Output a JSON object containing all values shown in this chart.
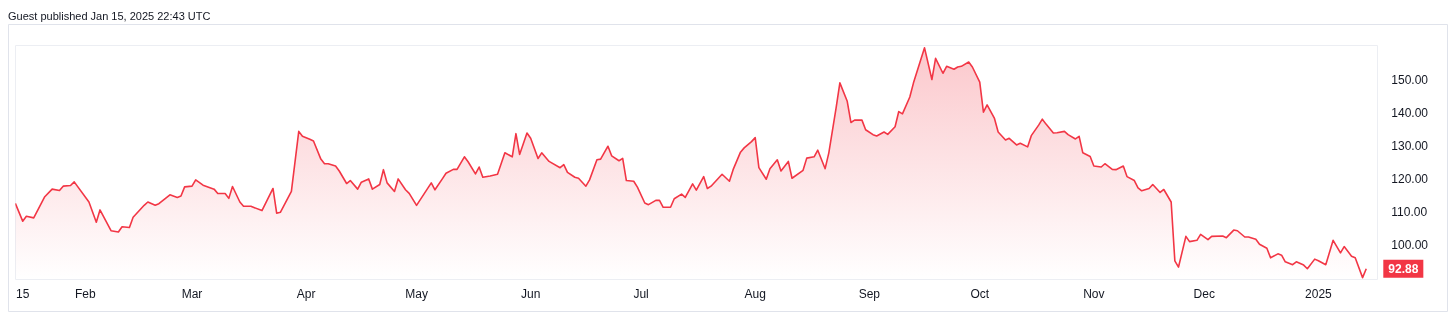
{
  "chart_data": {
    "type": "area",
    "title": "Guest published Jan 15, 2025 22:43 UTC",
    "x": [
      "2024-01-13",
      "2024-01-15",
      "2024-01-16",
      "2024-01-18",
      "2024-01-21",
      "2024-01-23",
      "2024-01-25",
      "2024-01-26",
      "2024-01-28",
      "2024-01-29",
      "2024-02-02",
      "2024-02-04",
      "2024-02-05",
      "2024-02-08",
      "2024-02-10",
      "2024-02-11",
      "2024-02-13",
      "2024-02-14",
      "2024-02-17",
      "2024-02-18",
      "2024-02-20",
      "2024-02-21",
      "2024-02-24",
      "2024-02-26",
      "2024-02-27",
      "2024-02-28",
      "2024-03-01",
      "2024-03-02",
      "2024-03-04",
      "2024-03-07",
      "2024-03-08",
      "2024-03-10",
      "2024-03-11",
      "2024-03-12",
      "2024-03-14",
      "2024-03-15",
      "2024-03-17",
      "2024-03-20",
      "2024-03-23",
      "2024-03-24",
      "2024-03-25",
      "2024-03-27",
      "2024-03-28",
      "2024-03-30",
      "2024-03-31",
      "2024-04-02",
      "2024-04-03",
      "2024-04-05",
      "2024-04-06",
      "2024-04-07",
      "2024-04-09",
      "2024-04-10",
      "2024-04-12",
      "2024-04-13",
      "2024-04-15",
      "2024-04-16",
      "2024-04-18",
      "2024-04-19",
      "2024-04-21",
      "2024-04-22",
      "2024-04-23",
      "2024-04-25",
      "2024-04-26",
      "2024-04-28",
      "2024-04-29",
      "2024-05-01",
      "2024-05-03",
      "2024-05-05",
      "2024-05-06",
      "2024-05-08",
      "2024-05-09",
      "2024-05-11",
      "2024-05-12",
      "2024-05-14",
      "2024-05-15",
      "2024-05-17",
      "2024-05-18",
      "2024-05-19",
      "2024-05-21",
      "2024-05-23",
      "2024-05-25",
      "2024-05-27",
      "2024-05-28",
      "2024-05-29",
      "2024-05-31",
      "2024-06-01",
      "2024-06-03",
      "2024-06-04",
      "2024-06-06",
      "2024-06-09",
      "2024-06-10",
      "2024-06-11",
      "2024-06-13",
      "2024-06-14",
      "2024-06-16",
      "2024-06-17",
      "2024-06-19",
      "2024-06-20",
      "2024-06-22",
      "2024-06-23",
      "2024-06-25",
      "2024-06-26",
      "2024-06-27",
      "2024-06-29",
      "2024-06-30",
      "2024-07-02",
      "2024-07-03",
      "2024-07-05",
      "2024-07-06",
      "2024-07-07",
      "2024-07-09",
      "2024-07-10",
      "2024-07-12",
      "2024-07-13",
      "2024-07-15",
      "2024-07-16",
      "2024-07-18",
      "2024-07-19",
      "2024-07-20",
      "2024-07-23",
      "2024-07-25",
      "2024-07-26",
      "2024-07-28",
      "2024-07-29",
      "2024-07-31",
      "2024-08-01",
      "2024-08-02",
      "2024-08-04",
      "2024-08-05",
      "2024-08-07",
      "2024-08-08",
      "2024-08-10",
      "2024-08-11",
      "2024-08-14",
      "2024-08-15",
      "2024-08-17",
      "2024-08-18",
      "2024-08-20",
      "2024-08-21",
      "2024-08-23",
      "2024-08-24",
      "2024-08-26",
      "2024-08-27",
      "2024-08-28",
      "2024-08-30",
      "2024-08-31",
      "2024-09-02",
      "2024-09-03",
      "2024-09-05",
      "2024-09-06",
      "2024-09-08",
      "2024-09-09",
      "2024-09-10",
      "2024-09-12",
      "2024-09-13",
      "2024-09-16",
      "2024-09-18",
      "2024-09-19",
      "2024-09-21",
      "2024-09-22",
      "2024-09-24",
      "2024-09-25",
      "2024-09-26",
      "2024-09-28",
      "2024-09-29",
      "2024-10-01",
      "2024-10-02",
      "2024-10-03",
      "2024-10-05",
      "2024-10-06",
      "2024-10-08",
      "2024-10-09",
      "2024-10-11",
      "2024-10-12",
      "2024-10-14",
      "2024-10-15",
      "2024-10-17",
      "2024-10-18",
      "2024-10-19",
      "2024-10-21",
      "2024-10-22",
      "2024-10-24",
      "2024-10-25",
      "2024-10-27",
      "2024-10-28",
      "2024-10-29",
      "2024-10-31",
      "2024-11-01",
      "2024-11-03",
      "2024-11-04",
      "2024-11-06",
      "2024-11-07",
      "2024-11-09",
      "2024-11-10",
      "2024-11-12",
      "2024-11-13",
      "2024-11-14",
      "2024-11-16",
      "2024-11-17",
      "2024-11-19",
      "2024-11-20",
      "2024-11-22",
      "2024-11-23",
      "2024-11-24",
      "2024-11-26",
      "2024-11-27",
      "2024-11-29",
      "2024-11-30",
      "2024-12-02",
      "2024-12-03",
      "2024-12-06",
      "2024-12-07",
      "2024-12-09",
      "2024-12-10",
      "2024-12-12",
      "2024-12-13",
      "2024-12-15",
      "2024-12-16",
      "2024-12-18",
      "2024-12-19",
      "2024-12-21",
      "2024-12-22",
      "2024-12-23",
      "2024-12-25",
      "2024-12-26",
      "2024-12-28",
      "2024-12-29",
      "2024-12-31",
      "2025-01-01",
      "2025-01-03",
      "2025-01-05",
      "2025-01-07",
      "2025-01-08",
      "2025-01-10",
      "2025-01-11",
      "2025-01-13",
      "2025-01-14"
    ],
    "series": [
      {
        "color": "#f23645",
        "values": [
          112.7,
          107.3,
          108.8,
          108.3,
          114.7,
          117.0,
          116.6,
          117.9,
          118.1,
          119.2,
          113.1,
          107.0,
          110.7,
          104.4,
          104.0,
          105.6,
          105.4,
          108.5,
          112.1,
          113.1,
          112.1,
          112.6,
          115.3,
          114.5,
          114.9,
          117.7,
          117.9,
          119.8,
          118.2,
          117.0,
          115.7,
          115.7,
          114.2,
          117.8,
          113.1,
          111.8,
          111.8,
          110.5,
          117.2,
          109.7,
          110.0,
          114.2,
          116.3,
          134.5,
          133.0,
          132.1,
          131.6,
          126.1,
          124.7,
          124.7,
          124.0,
          122.5,
          118.7,
          119.6,
          117.0,
          119.1,
          120.1,
          117.0,
          118.4,
          122.9,
          118.9,
          116.3,
          120.1,
          116.8,
          115.7,
          112.1,
          115.5,
          118.9,
          116.8,
          120.1,
          121.8,
          123.0,
          123.0,
          126.8,
          125.3,
          121.6,
          123.7,
          120.6,
          121.0,
          121.5,
          128.0,
          126.8,
          133.8,
          127.5,
          134.0,
          132.4,
          126.3,
          128.0,
          125.4,
          123.5,
          124.4,
          122.1,
          120.6,
          120.3,
          117.9,
          119.8,
          125.9,
          126.1,
          130.0,
          127.1,
          125.6,
          126.3,
          119.6,
          119.4,
          117.6,
          112.8,
          112.3,
          113.6,
          113.6,
          111.5,
          111.5,
          114.1,
          115.5,
          114.5,
          118.6,
          116.7,
          120.8,
          117.2,
          117.9,
          121.5,
          119.4,
          122.9,
          128.2,
          129.5,
          131.4,
          132.6,
          123.5,
          120.0,
          123.2,
          125.9,
          122.5,
          125.4,
          120.3,
          122.7,
          126.4,
          126.8,
          128.8,
          123.2,
          128.0,
          141.8,
          149.2,
          143.6,
          137.2,
          137.9,
          137.9,
          135.0,
          133.5,
          133.1,
          134.3,
          133.6,
          135.9,
          140.5,
          139.8,
          144.9,
          149.2,
          159.8,
          150.2,
          156.6,
          152.1,
          154.2,
          153.3,
          154.0,
          154.2,
          155.5,
          154.0,
          149.4,
          140.3,
          142.5,
          138.4,
          134.3,
          131.9,
          132.4,
          130.4,
          130.9,
          129.8,
          133.2,
          136.4,
          138.2,
          136.7,
          134.0,
          134.1,
          134.5,
          133.5,
          132.2,
          133.0,
          128.0,
          126.9,
          124.0,
          123.7,
          124.7,
          123.0,
          122.9,
          124.0,
          120.8,
          119.6,
          117.4,
          116.5,
          117.2,
          118.4,
          116.0,
          116.9,
          113.1,
          95.3,
          93.4,
          102.7,
          101.1,
          101.5,
          103.3,
          101.7,
          102.7,
          102.8,
          102.3,
          104.6,
          104.4,
          102.5,
          102.5,
          101.8,
          100.3,
          99.1,
          96.2,
          97.4,
          97.0,
          95.0,
          94.1,
          95.0,
          94.0,
          92.9,
          95.8,
          95.3,
          94.1,
          101.5,
          97.7,
          99.6,
          96.7,
          96.2,
          90.2,
          92.88
        ]
      }
    ],
    "xlim": [
      "2024-01-13",
      "2025-01-17"
    ],
    "xticks": [
      {
        "value": "2024-01-15",
        "label": "15"
      },
      {
        "value": "2024-02-01",
        "label": "Feb"
      },
      {
        "value": "2024-03-01",
        "label": "Mar"
      },
      {
        "value": "2024-04-01",
        "label": "Apr"
      },
      {
        "value": "2024-05-01",
        "label": "May"
      },
      {
        "value": "2024-06-01",
        "label": "Jun"
      },
      {
        "value": "2024-07-01",
        "label": "Jul"
      },
      {
        "value": "2024-08-01",
        "label": "Aug"
      },
      {
        "value": "2024-09-01",
        "label": "Sep"
      },
      {
        "value": "2024-10-01",
        "label": "Oct"
      },
      {
        "value": "2024-11-01",
        "label": "Nov"
      },
      {
        "value": "2024-12-01",
        "label": "Dec"
      },
      {
        "value": "2025-01-01",
        "label": "2025"
      }
    ],
    "ylim": [
      89.6,
      160.6
    ],
    "yticks": [
      {
        "value": 100,
        "label": "100.00"
      },
      {
        "value": 110,
        "label": "110.00"
      },
      {
        "value": 120,
        "label": "120.00"
      },
      {
        "value": 130,
        "label": "130.00"
      },
      {
        "value": 140,
        "label": "140.00"
      },
      {
        "value": 150,
        "label": "150.00"
      }
    ],
    "annotations": [
      "92.88"
    ]
  }
}
